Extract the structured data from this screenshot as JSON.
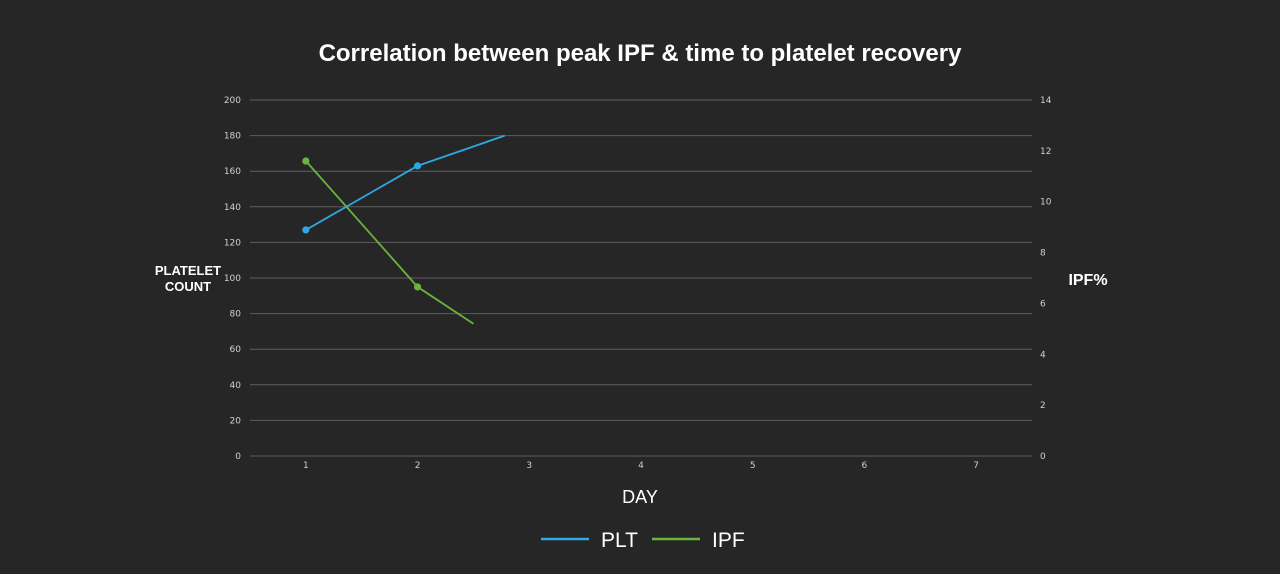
{
  "chart_data": {
    "type": "line",
    "title": "Correlation between peak IPF & time to platelet recovery",
    "xlabel": "DAY",
    "ylabel_lines": [
      "PLATELET",
      "COUNT"
    ],
    "y2label": "IPF%",
    "x_ticks": [
      1,
      2,
      3,
      4,
      5,
      6,
      7
    ],
    "xlim": [
      0.5,
      7.5
    ],
    "ylim": [
      0,
      200
    ],
    "y_ticks": [
      0,
      20,
      40,
      60,
      80,
      100,
      120,
      140,
      160,
      180,
      200
    ],
    "y2lim": [
      0,
      14
    ],
    "y2_ticks": [
      0,
      2,
      4,
      6,
      8,
      10,
      12,
      14
    ],
    "grid": true,
    "legend_position": "bottom-center",
    "series": [
      {
        "name": "PLT",
        "axis": "left",
        "color": "#2ea8e0",
        "x": [
          1,
          2,
          2.78
        ],
        "y": [
          127,
          163,
          180
        ],
        "markers": [
          true,
          true,
          false
        ]
      },
      {
        "name": "IPF",
        "axis": "right",
        "color": "#6ab43e",
        "x": [
          1,
          2,
          2.5
        ],
        "y": [
          11.6,
          6.65,
          5.2
        ],
        "markers": [
          true,
          true,
          false
        ]
      }
    ]
  }
}
